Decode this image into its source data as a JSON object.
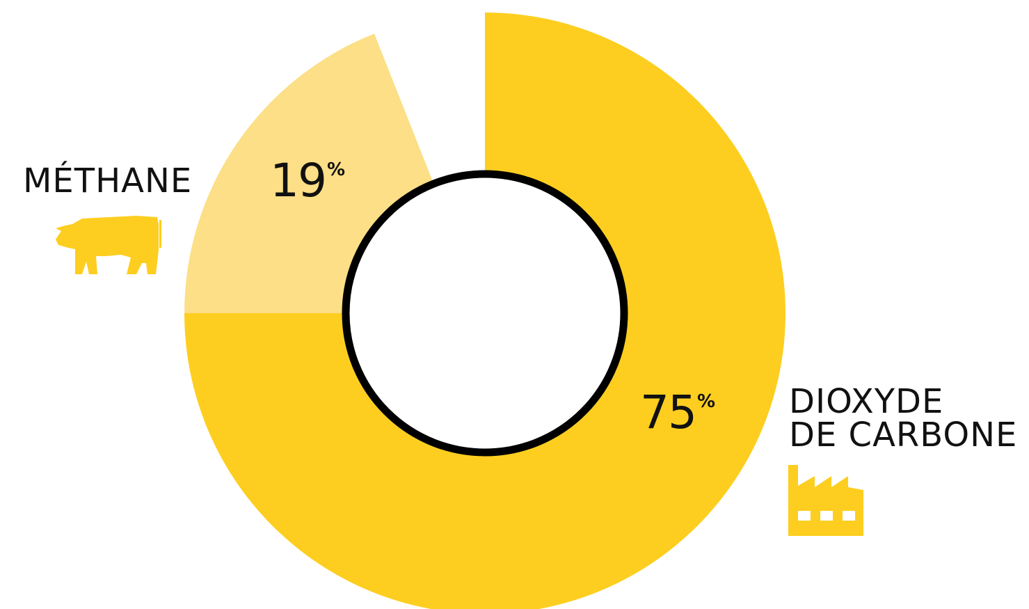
{
  "chart_data": {
    "type": "pie",
    "variant": "donut",
    "slices": [
      {
        "label": "MÉTHANE",
        "value": 19,
        "display": "19",
        "unit": "%",
        "color": "#FCDF86"
      },
      {
        "label": "DIOXYDE DE CARBONE",
        "value": 75,
        "display": "75",
        "unit": "%",
        "color": "#FDCE1F"
      }
    ],
    "unlabeled_remainder": {
      "value": 6,
      "color": "#FFFFFF"
    },
    "start": "12 o'clock",
    "direction": "clockwise",
    "ring_outline_color": "#000000"
  },
  "labels": {
    "methane": "MÉTHANE",
    "co2_line1": "DIOXYDE",
    "co2_line2": "DE CARBONE"
  },
  "percent": {
    "methane_num": "19",
    "co2_num": "75",
    "symbol": "%"
  },
  "icons": {
    "methane": "cow-icon",
    "co2": "factory-icon",
    "color": "#FDCE1F"
  }
}
